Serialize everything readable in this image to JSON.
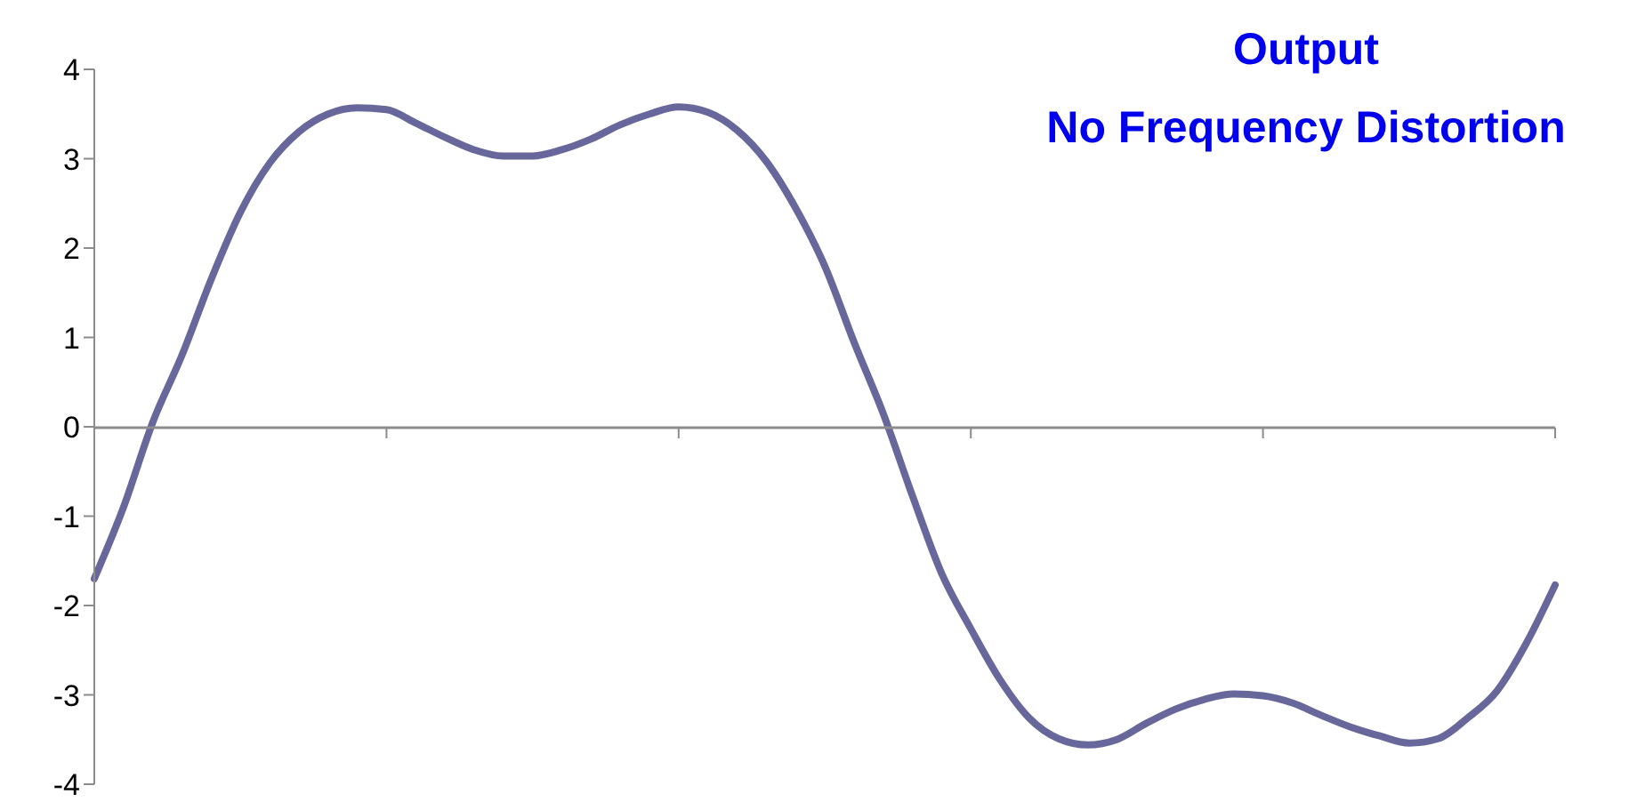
{
  "chart_data": {
    "type": "line",
    "title": "Output",
    "subtitle": "No Frequency Distortion",
    "categories": [
      null,
      null,
      null,
      null,
      null,
      null,
      null,
      null,
      null,
      null,
      null,
      null,
      null,
      null,
      null,
      null,
      null,
      null,
      null,
      null,
      null,
      null,
      null,
      null,
      null,
      null,
      null,
      null,
      null,
      null,
      null,
      null,
      null,
      null,
      null,
      null,
      null,
      null,
      null,
      null,
      null,
      null,
      null,
      null,
      null,
      null,
      null,
      null,
      null,
      null,
      null
    ],
    "series": [
      {
        "color": "#67679b",
        "values": [
          -1.7,
          -0.9,
          0.05,
          0.8,
          1.65,
          2.4,
          2.95,
          3.3,
          3.5,
          3.57,
          3.55,
          3.4,
          3.24,
          3.1,
          3.03,
          3.03,
          3.1,
          3.22,
          3.38,
          3.5,
          3.58,
          3.52,
          3.32,
          2.97,
          2.45,
          1.8,
          0.95,
          0.15,
          -0.77,
          -1.64,
          -2.26,
          -2.83,
          -3.26,
          -3.49,
          -3.56,
          -3.5,
          -3.32,
          -3.16,
          -3.05,
          -2.99,
          -3.01,
          -3.09,
          -3.23,
          -3.36,
          -3.46,
          -3.54,
          -3.49,
          -3.26,
          -2.96,
          -2.43,
          -1.77
        ]
      }
    ],
    "ylim": [
      -4,
      4
    ],
    "yticks": [
      -4,
      -3,
      -2,
      -1,
      0,
      1,
      2,
      3,
      4
    ],
    "marker": "none",
    "line_style": "solid"
  }
}
